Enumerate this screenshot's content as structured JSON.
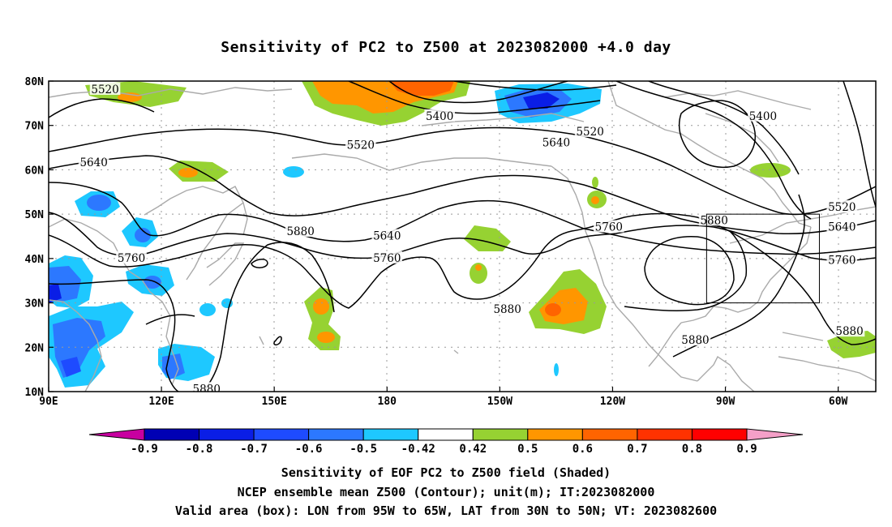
{
  "title": "Sensitivity of PC2 to Z500 at 2023082000 +4.0 day",
  "map": {
    "lon_range": [
      90,
      310
    ],
    "lat_range": [
      10,
      80
    ],
    "lon_ticks": [
      {
        "lon": 90,
        "label": "90E"
      },
      {
        "lon": 120,
        "label": "120E"
      },
      {
        "lon": 150,
        "label": "150E"
      },
      {
        "lon": 180,
        "label": "180"
      },
      {
        "lon": 210,
        "label": "150W"
      },
      {
        "lon": 240,
        "label": "120W"
      },
      {
        "lon": 270,
        "label": "90W"
      },
      {
        "lon": 300,
        "label": "60W"
      }
    ],
    "lat_ticks": [
      {
        "lat": 80,
        "label": "80N"
      },
      {
        "lat": 70,
        "label": "70N"
      },
      {
        "lat": 60,
        "label": "60N"
      },
      {
        "lat": 50,
        "label": "50N"
      },
      {
        "lat": 40,
        "label": "40N"
      },
      {
        "lat": 30,
        "label": "30N"
      },
      {
        "lat": 20,
        "label": "20N"
      },
      {
        "lat": 10,
        "label": "10N"
      }
    ],
    "gridlines": true,
    "valid_box": {
      "lon_min": 265,
      "lon_max": 295,
      "lat_min": 30,
      "lat_max": 50
    },
    "contour_labels": [
      {
        "text": "5520",
        "lon": 105,
        "lat": 78
      },
      {
        "text": "5400",
        "lon": 194,
        "lat": 72
      },
      {
        "text": "5520",
        "lon": 234,
        "lat": 68.5
      },
      {
        "text": "5400",
        "lon": 280,
        "lat": 72
      },
      {
        "text": "5520",
        "lon": 173,
        "lat": 65.5
      },
      {
        "text": "5640",
        "lon": 225,
        "lat": 66
      },
      {
        "text": "5640",
        "lon": 102,
        "lat": 61.5
      },
      {
        "text": "5520",
        "lon": 301,
        "lat": 51.5
      },
      {
        "text": "5640",
        "lon": 301,
        "lat": 47
      },
      {
        "text": "5880",
        "lon": 157,
        "lat": 46
      },
      {
        "text": "5640",
        "lon": 180,
        "lat": 45
      },
      {
        "text": "5760",
        "lon": 239,
        "lat": 47
      },
      {
        "text": "5880",
        "lon": 267,
        "lat": 48.5
      },
      {
        "text": "5760",
        "lon": 112,
        "lat": 40
      },
      {
        "text": "5760",
        "lon": 180,
        "lat": 40
      },
      {
        "text": "5760",
        "lon": 301,
        "lat": 39.5
      },
      {
        "text": "5880",
        "lon": 212,
        "lat": 28.5
      },
      {
        "text": "5880",
        "lon": 262,
        "lat": 21.5
      },
      {
        "text": "5880",
        "lon": 303,
        "lat": 23.5
      },
      {
        "text": "5880",
        "lon": 132,
        "lat": 10.5
      }
    ]
  },
  "colorbar": {
    "labels": [
      "-0.9",
      "-0.8",
      "-0.7",
      "-0.6",
      "-0.5",
      "-0.42",
      "0.42",
      "0.5",
      "0.6",
      "0.7",
      "0.8",
      "0.9"
    ],
    "colors": [
      "#0000b4",
      "#0a1ee6",
      "#1e4bff",
      "#2c78ff",
      "#1ec8ff",
      "#ffffff",
      "#96d232",
      "#ff9600",
      "#ff6400",
      "#ff3200",
      "#ff0000"
    ],
    "low_color": "#c800a0",
    "high_color": "#f5a0c8"
  },
  "caption": {
    "line1": "Sensitivity of EOF PC2 to Z500 field (Shaded)",
    "line2": "NCEP ensemble mean Z500 (Contour); unit(m); IT:2023082000",
    "line3": "Valid area (box): LON from 95W to 65W, LAT from 30N to 50N; VT: 2023082600"
  }
}
